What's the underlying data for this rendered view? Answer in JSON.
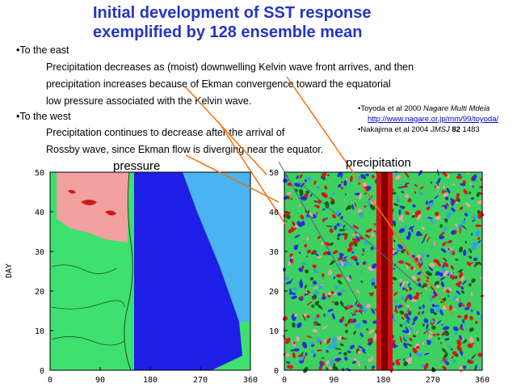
{
  "title": [
    "Initial development of SST response",
    "exemplified by 128 ensemble mean"
  ],
  "bullets": [
    {
      "heading": "•To the east",
      "lines": [
        "Precipitation decreases as (moist) downwelling Kelvin wave front arrives, and then",
        "precipitation increases because of Ekman convergence toward the equatorial",
        "low pressure associated with the Kelvin wave."
      ]
    },
    {
      "heading": "•To the west",
      "lines": [
        "Precipitation continues to decrease after the arrival of",
        "Rossby wave, since Ekman flow is diverging near the equator."
      ]
    }
  ],
  "references": {
    "toyoda": [
      "•Toyoda et al 2000 ",
      "Nagare Multi Mdeia"
    ],
    "url": "http://www.nagare.or.jp/mm/99/toyoda/",
    "nakajima": [
      "•Nakajima et al 2004 ",
      "JMSJ ",
      "82",
      " 1483"
    ]
  },
  "ylabel": "DAY",
  "panels": [
    {
      "label": "pressure",
      "yticks": [
        0,
        10,
        20,
        30,
        40,
        50
      ],
      "xticks": [
        0,
        90,
        180,
        270,
        360
      ]
    },
    {
      "label": "precipitation",
      "yticks": [
        0,
        10,
        20,
        30,
        40,
        50
      ],
      "xticks": [
        0,
        90,
        180,
        270,
        360
      ]
    }
  ]
}
